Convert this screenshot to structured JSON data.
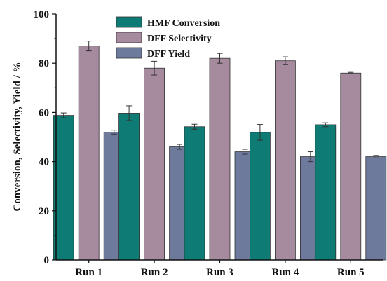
{
  "chart_data": {
    "type": "bar",
    "categories": [
      "Run 1",
      "Run 2",
      "Run 3",
      "Run 4",
      "Run 5"
    ],
    "series": [
      {
        "name": "HMF Conversion",
        "color": "#0e7c74",
        "values": [
          58.8,
          59.7,
          54.2,
          51.9,
          55.0
        ],
        "errors": [
          1.0,
          3.0,
          1.0,
          3.2,
          0.8
        ]
      },
      {
        "name": "DFF Selectivity",
        "color": "#a68a9e",
        "values": [
          87.0,
          78.0,
          82.0,
          81.0,
          76.0
        ],
        "errors": [
          2.0,
          2.8,
          2.0,
          1.6,
          0.3
        ]
      },
      {
        "name": "DFF Yield",
        "color": "#6d7a9c",
        "values": [
          52.0,
          46.0,
          44.0,
          42.0,
          42.0
        ],
        "errors": [
          0.8,
          1.0,
          1.0,
          2.0,
          0.5
        ]
      }
    ],
    "ylabel": "Conversion, Selectivity, Yield / %",
    "xlabel": "",
    "ylim": [
      0,
      100
    ],
    "yticks": [
      0,
      20,
      40,
      60,
      80,
      100
    ],
    "grid": false,
    "legend_position": "top-center"
  }
}
